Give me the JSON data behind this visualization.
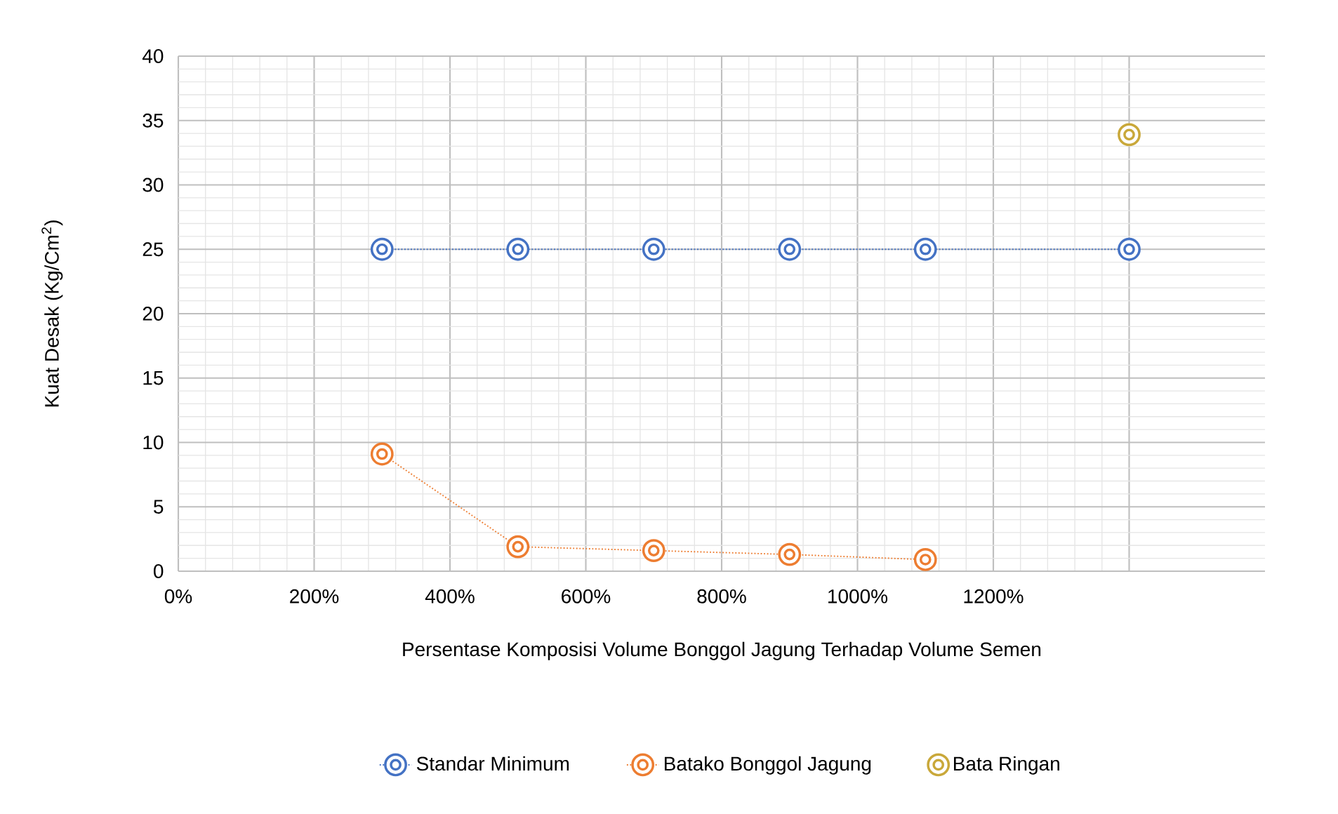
{
  "chart_data": {
    "type": "line",
    "xlabel": "Persentase Komposisi Volume Bonggol Jagung Terhadap Volume Semen",
    "ylabel": "Kuat Desak (Kg/Cm$^{2}$)",
    "xlim": [
      0,
      1600
    ],
    "xticks": [
      {
        "value": 0,
        "label": "0%"
      },
      {
        "value": 200,
        "label": "200%"
      },
      {
        "value": 400,
        "label": "400%"
      },
      {
        "value": 600,
        "label": "600%"
      },
      {
        "value": 800,
        "label": "800%"
      },
      {
        "value": 1000,
        "label": "1000%"
      },
      {
        "value": 1200,
        "label": "1200%"
      },
      {
        "value": 1400,
        "label": null
      }
    ],
    "ylim": [
      0,
      40
    ],
    "yticks": [
      0,
      5,
      10,
      15,
      20,
      25,
      30,
      35,
      40
    ],
    "grid": true,
    "legend": "bottom",
    "marker": "circle",
    "series": [
      {
        "name": "Standar Minimum",
        "color": "#4472c4",
        "line_style": "dotted",
        "x": [
          300,
          500,
          700,
          900,
          1100,
          1400
        ],
        "values": [
          25,
          25,
          25,
          25,
          25,
          25
        ]
      },
      {
        "name": "Batako Bonggol Jagung",
        "color": "#ed7d31",
        "line_style": "dotted",
        "x": [
          300,
          500,
          700,
          900,
          1100
        ],
        "values": [
          9.1,
          1.9,
          1.6,
          1.3,
          0.9
        ]
      },
      {
        "name": "Bata Ringan",
        "type": "scatter",
        "color": "#c9a83a",
        "x": [
          1400
        ],
        "values": [
          33.9
        ]
      }
    ]
  }
}
